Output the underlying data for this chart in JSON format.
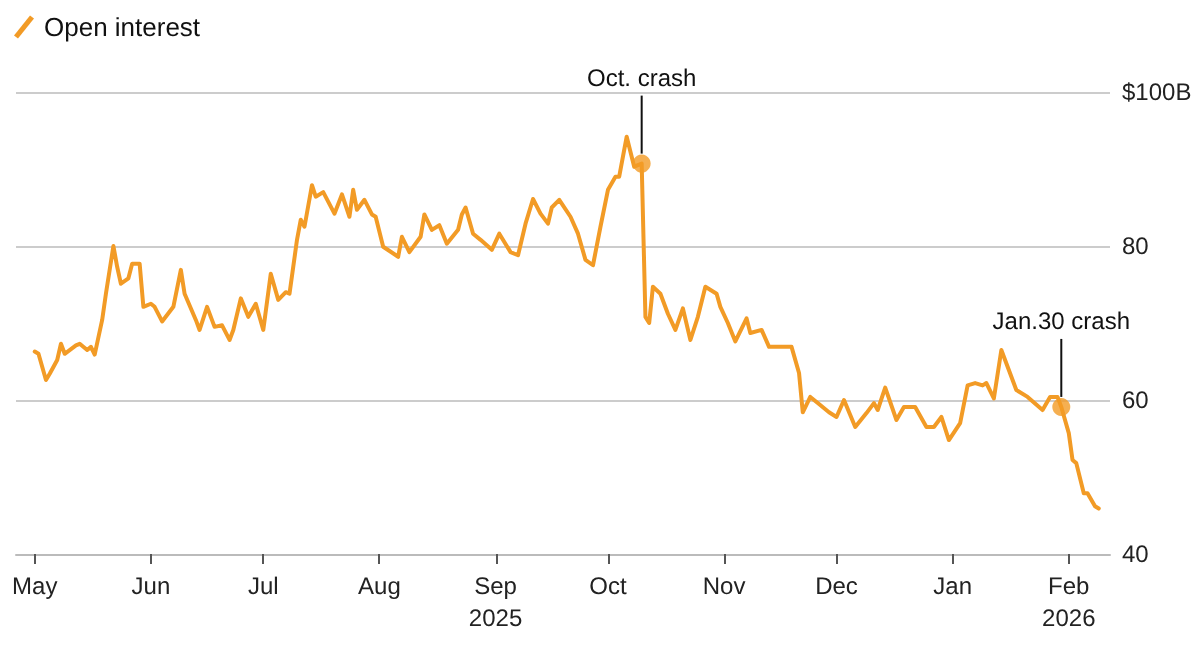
{
  "chart_data": {
    "type": "line",
    "legend": "top left",
    "grid": "y",
    "marker": "none",
    "line_style": "solid",
    "xlim": [
      "2025-04-26",
      "2026-02-12"
    ],
    "xticks": [
      {
        "value": "2025-05-01",
        "label": "May"
      },
      {
        "value": "2025-06-01",
        "label": "Jun"
      },
      {
        "value": "2025-07-01",
        "label": "Jul"
      },
      {
        "value": "2025-08-01",
        "label": "Aug"
      },
      {
        "value": "2025-09-01",
        "label": "Sep\n2025"
      },
      {
        "value": "2025-10-01",
        "label": "Oct"
      },
      {
        "value": "2025-11-01",
        "label": "Nov"
      },
      {
        "value": "2025-12-01",
        "label": "Dec"
      },
      {
        "value": "2026-01-01",
        "label": "Jan"
      },
      {
        "value": "2026-02-01",
        "label": "Feb\n2026"
      }
    ],
    "ylim": [
      40,
      100
    ],
    "yticks": [
      40,
      60,
      80,
      {
        "value": 100,
        "label": "$100B"
      }
    ],
    "annotations": [
      {
        "text": "Oct. crash",
        "x": "2025-10-10",
        "y": 90.7
      },
      {
        "text": "Jan.30 crash",
        "x": "2026-01-30",
        "y": 59.1
      }
    ],
    "series": [
      {
        "name": "Open interest",
        "color": "#f29b26",
        "x": [
          "2025-05-01",
          "2025-05-02",
          "2025-05-04",
          "2025-05-05",
          "2025-05-07",
          "2025-05-08",
          "2025-05-09",
          "2025-05-12",
          "2025-05-13",
          "2025-05-15",
          "2025-05-16",
          "2025-05-17",
          "2025-05-19",
          "2025-05-20",
          "2025-05-22",
          "2025-05-23",
          "2025-05-24",
          "2025-05-26",
          "2025-05-27",
          "2025-05-29",
          "2025-05-30",
          "2025-06-01",
          "2025-06-02",
          "2025-06-04",
          "2025-06-07",
          "2025-06-09",
          "2025-06-10",
          "2025-06-13",
          "2025-06-14",
          "2025-06-16",
          "2025-06-18",
          "2025-06-20",
          "2025-06-22",
          "2025-06-23",
          "2025-06-25",
          "2025-06-27",
          "2025-06-29",
          "2025-07-01",
          "2025-07-03",
          "2025-07-05",
          "2025-07-07",
          "2025-07-08",
          "2025-07-10",
          "2025-07-11",
          "2025-07-12",
          "2025-07-14",
          "2025-07-15",
          "2025-07-17",
          "2025-07-20",
          "2025-07-22",
          "2025-07-24",
          "2025-07-25",
          "2025-07-26",
          "2025-07-28",
          "2025-07-30",
          "2025-07-31",
          "2025-08-02",
          "2025-08-06",
          "2025-08-07",
          "2025-08-09",
          "2025-08-12",
          "2025-08-13",
          "2025-08-15",
          "2025-08-17",
          "2025-08-19",
          "2025-08-22",
          "2025-08-23",
          "2025-08-24",
          "2025-08-26",
          "2025-08-28",
          "2025-08-31",
          "2025-09-02",
          "2025-09-05",
          "2025-09-07",
          "2025-09-09",
          "2025-09-11",
          "2025-09-13",
          "2025-09-15",
          "2025-09-16",
          "2025-09-18",
          "2025-09-21",
          "2025-09-23",
          "2025-09-25",
          "2025-09-27",
          "2025-09-29",
          "2025-10-01",
          "2025-10-03",
          "2025-10-04",
          "2025-10-06",
          "2025-10-08",
          "2025-10-10",
          "2025-10-11",
          "2025-10-12",
          "2025-10-13",
          "2025-10-15",
          "2025-10-17",
          "2025-10-19",
          "2025-10-21",
          "2025-10-23",
          "2025-10-25",
          "2025-10-27",
          "2025-10-30",
          "2025-10-31",
          "2025-11-02",
          "2025-11-04",
          "2025-11-07",
          "2025-11-08",
          "2025-11-11",
          "2025-11-13",
          "2025-11-16",
          "2025-11-19",
          "2025-11-21",
          "2025-11-22",
          "2025-11-24",
          "2025-11-26",
          "2025-11-29",
          "2025-12-01",
          "2025-12-03",
          "2025-12-06",
          "2025-12-09",
          "2025-12-11",
          "2025-12-12",
          "2025-12-14",
          "2025-12-17",
          "2025-12-19",
          "2025-12-22",
          "2025-12-25",
          "2025-12-27",
          "2025-12-29",
          "2025-12-31",
          "2026-01-03",
          "2026-01-05",
          "2026-01-07",
          "2026-01-09",
          "2026-01-10",
          "2026-01-12",
          "2026-01-14",
          "2026-01-17",
          "2026-01-18",
          "2026-01-21",
          "2026-01-25",
          "2026-01-27",
          "2026-01-29",
          "2026-01-30",
          "2026-02-01",
          "2026-02-02",
          "2026-02-03",
          "2026-02-05",
          "2026-02-06",
          "2026-02-08",
          "2026-02-09"
        ],
        "values": [
          66.3,
          66,
          62.6,
          63.4,
          65.2,
          67.3,
          66,
          67.1,
          67.3,
          66.5,
          66.9,
          65.9,
          70.4,
          73.8,
          80,
          77.3,
          75.1,
          75.8,
          77.7,
          77.7,
          72.1,
          72.5,
          72.1,
          70.2,
          72.1,
          76.9,
          73.8,
          70.4,
          69.1,
          72.1,
          69.5,
          69.7,
          67.8,
          69.1,
          73.2,
          70.8,
          72.5,
          69.1,
          76.4,
          73,
          74,
          73.8,
          80.8,
          83.4,
          82.5,
          87.9,
          86.4,
          87,
          84.2,
          86.7,
          83.8,
          87.3,
          84.7,
          86,
          84.1,
          83.8,
          79.9,
          78.6,
          81.2,
          79.2,
          81.2,
          84.1,
          82.1,
          82.7,
          80.3,
          82.1,
          84.1,
          85,
          81.6,
          80.8,
          79.5,
          81.6,
          79.2,
          78.8,
          82.9,
          86.1,
          84.2,
          82.9,
          85,
          86,
          83.8,
          81.6,
          78.2,
          77.5,
          82.5,
          87.3,
          89,
          89,
          94.2,
          90.3,
          90.7,
          70.8,
          70,
          74.7,
          73.8,
          71.2,
          69.1,
          71.9,
          67.8,
          70.8,
          74.7,
          73.8,
          72.1,
          70,
          67.6,
          70.6,
          68.7,
          69.1,
          66.9,
          66.9,
          66.9,
          63.5,
          58.4,
          60.4,
          59.6,
          58.4,
          57.8,
          60,
          56.5,
          58.3,
          59.6,
          58.7,
          61.6,
          57.4,
          59.1,
          59.1,
          56.5,
          56.5,
          57.8,
          54.8,
          57,
          61.9,
          62.2,
          61.9,
          62.2,
          60.2,
          66.5,
          62.6,
          61.3,
          60.4,
          58.7,
          60.4,
          60.4,
          59.1,
          55.7,
          52.2,
          51.8,
          47.9,
          47.9,
          46.2,
          45.9
        ]
      }
    ]
  }
}
